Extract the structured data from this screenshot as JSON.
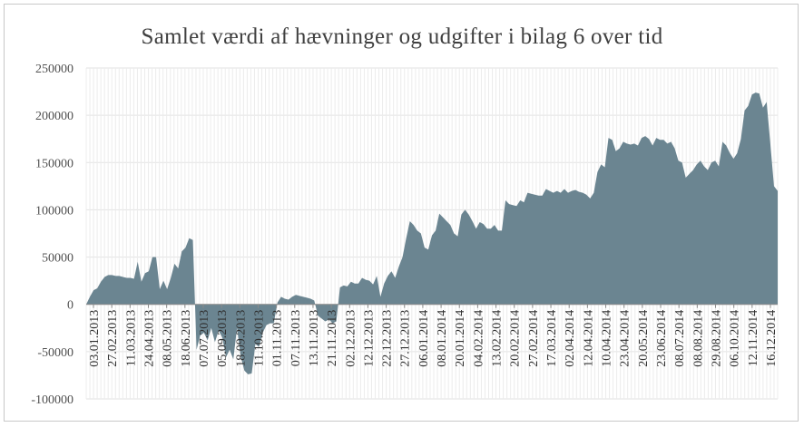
{
  "chart_data": {
    "type": "area",
    "title": "Samlet værdi af hævninger og udgifter i bilag 6 over tid",
    "xlabel": "",
    "ylabel": "",
    "ylim": [
      -100000,
      250000
    ],
    "yticks": [
      250000,
      200000,
      150000,
      100000,
      50000,
      0,
      -50000,
      -100000
    ],
    "grid": true,
    "legend": "none",
    "colors": {
      "area": "#6b8591",
      "grid": "#e2e2e2",
      "axis": "#8a8a8a"
    },
    "x_tick_labels": [
      "03.01.2013",
      "27.02.2013",
      "11.03.2013",
      "24.04.2013",
      "08.05.2013",
      "18.06.2013",
      "07.07.2013",
      "05.09.2013",
      "18.09.2013",
      "11.10.2013",
      "01.11.2013",
      "07.11.2013",
      "13.11.2013",
      "21.11.2013",
      "02.12.2013",
      "12.12.2013",
      "22.12.2013",
      "27.12.2013",
      "06.01.2014",
      "08.01.2014",
      "20.01.2014",
      "04.02.2014",
      "13.02.2014",
      "20.02.2014",
      "27.02.2014",
      "17.03.2014",
      "02.04.2014",
      "12.04.2014",
      "10.04.2014",
      "23.04.2014",
      "20.05.2014",
      "23.06.2014",
      "08.07.2014",
      "08.08.2014",
      "29.08.2014",
      "06.10.2014",
      "12.11.2014",
      "16.12.2014"
    ],
    "series": [
      {
        "values": [
          0,
          8000,
          15000,
          17000,
          24000,
          29000,
          31000,
          31000,
          30000,
          30000,
          29000,
          28000,
          28000,
          27000,
          45000,
          24000,
          33000,
          35000,
          50000,
          50000,
          16000,
          25000,
          16000,
          28000,
          43000,
          38000,
          56000,
          60000,
          70000,
          68000,
          -48000,
          -33000,
          -30000,
          -38000,
          -25000,
          -40000,
          -28000,
          -35000,
          -56000,
          -48000,
          -58000,
          -25000,
          -55000,
          -70000,
          -74000,
          -73000,
          -42000,
          -45000,
          -30000,
          -22000,
          -20000,
          -20000,
          2000,
          8000,
          6000,
          5000,
          8000,
          10000,
          9000,
          8000,
          7000,
          6000,
          4000,
          -12000,
          -15000,
          -18000,
          -16000,
          -20000,
          -18000,
          18000,
          20000,
          19000,
          24000,
          22000,
          22000,
          28000,
          26000,
          25000,
          21000,
          30000,
          8000,
          22000,
          30000,
          35000,
          28000,
          40000,
          50000,
          70000,
          88000,
          84000,
          78000,
          75000,
          60000,
          58000,
          73000,
          78000,
          96000,
          92000,
          88000,
          84000,
          75000,
          72000,
          95000,
          100000,
          95000,
          88000,
          80000,
          87000,
          85000,
          80000,
          80000,
          84000,
          78000,
          78000,
          110000,
          106000,
          105000,
          104000,
          110000,
          108000,
          118000,
          117000,
          116000,
          115000,
          115000,
          122000,
          120000,
          118000,
          120000,
          118000,
          122000,
          118000,
          120000,
          121000,
          119000,
          118000,
          116000,
          112000,
          118000,
          140000,
          148000,
          145000,
          176000,
          174000,
          162000,
          165000,
          172000,
          170000,
          169000,
          170000,
          168000,
          176000,
          178000,
          175000,
          168000,
          176000,
          174000,
          174000,
          170000,
          172000,
          165000,
          152000,
          150000,
          134000,
          138000,
          142000,
          148000,
          152000,
          146000,
          142000,
          150000,
          152000,
          146000,
          172000,
          168000,
          160000,
          154000,
          160000,
          175000,
          205000,
          210000,
          222000,
          224000,
          223000,
          208000,
          214000,
          170000,
          125000,
          120000
        ]
      }
    ]
  }
}
